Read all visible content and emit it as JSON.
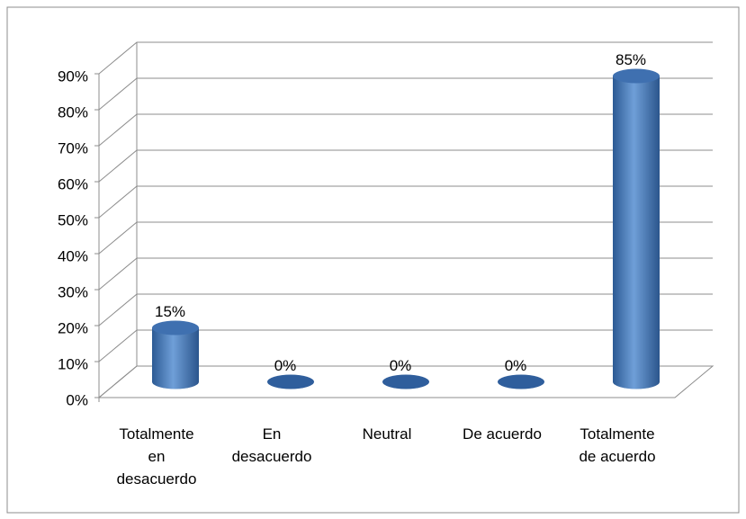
{
  "chart_data": {
    "type": "bar3d",
    "categories": [
      "Totalmente en desacuerdo",
      "En desacuerdo",
      "Neutral",
      "De acuerdo",
      "Totalmente de acuerdo"
    ],
    "values": [
      15,
      0,
      0,
      0,
      85
    ],
    "value_labels": [
      "15%",
      "0%",
      "0%",
      "0%",
      "85%"
    ],
    "color": "#4f81bd",
    "ylim": [
      0,
      90
    ],
    "yticks": [
      {
        "value": 0,
        "label": "0%"
      },
      {
        "value": 10,
        "label": "10%"
      },
      {
        "value": 20,
        "label": "20%"
      },
      {
        "value": 30,
        "label": "30%"
      },
      {
        "value": 40,
        "label": "40%"
      },
      {
        "value": 50,
        "label": "50%"
      },
      {
        "value": 60,
        "label": "60%"
      },
      {
        "value": 70,
        "label": "70%"
      },
      {
        "value": 80,
        "label": "80%"
      },
      {
        "value": 90,
        "label": "90%"
      }
    ],
    "grid": true
  }
}
